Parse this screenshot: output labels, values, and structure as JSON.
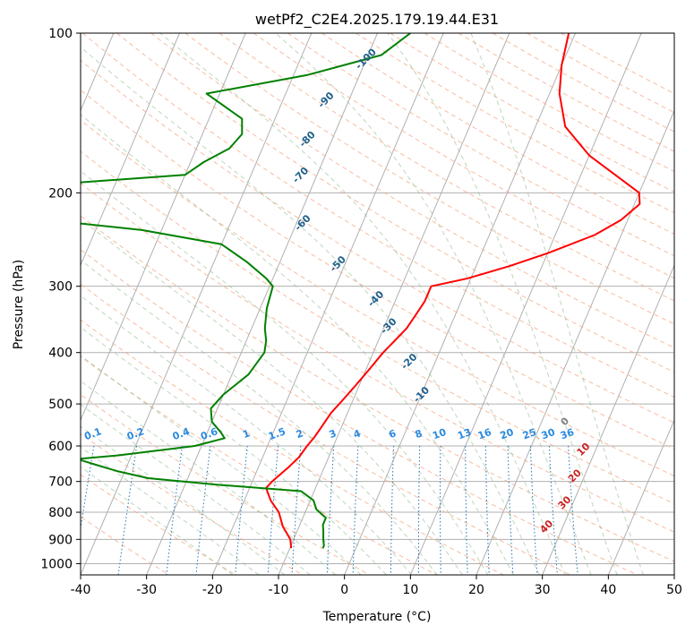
{
  "chart_data": {
    "type": "line",
    "title": "wetPf2_C2E4.2025.179.19.44.E31",
    "xlabel": "Temperature (°C)",
    "ylabel": "Pressure (hPa)",
    "xlim": [
      -40,
      50
    ],
    "ylim": [
      1050,
      100
    ],
    "y_scale": "log",
    "grid": true,
    "x_ticks": [
      -40,
      -30,
      -20,
      -10,
      0,
      10,
      20,
      30,
      40,
      50
    ],
    "y_ticks": [
      100,
      200,
      300,
      400,
      500,
      600,
      700,
      800,
      900,
      1000
    ],
    "series": [
      {
        "id": "temperature",
        "color": "#ff0000",
        "points": [
          [
            -1.0,
            100
          ],
          [
            0.0,
            115
          ],
          [
            1.5,
            130
          ],
          [
            4.5,
            150
          ],
          [
            10.0,
            170
          ],
          [
            20.0,
            200
          ],
          [
            20.8,
            210
          ],
          [
            19.0,
            225
          ],
          [
            16.0,
            240
          ],
          [
            10.0,
            260
          ],
          [
            5.0,
            275
          ],
          [
            -0.5,
            290
          ],
          [
            -5.5,
            300
          ],
          [
            -5.5,
            320
          ],
          [
            -6.0,
            340
          ],
          [
            -6.5,
            360
          ],
          [
            -7.5,
            380
          ],
          [
            -8.5,
            400
          ],
          [
            -9.5,
            430
          ],
          [
            -10.5,
            460
          ],
          [
            -11.5,
            490
          ],
          [
            -12.5,
            520
          ],
          [
            -13.0,
            550
          ],
          [
            -13.5,
            580
          ],
          [
            -14.0,
            600
          ],
          [
            -14.5,
            630
          ],
          [
            -15.5,
            660
          ],
          [
            -17.0,
            700
          ],
          [
            -17.5,
            720
          ],
          [
            -16.0,
            760
          ],
          [
            -14.0,
            800
          ],
          [
            -12.5,
            850
          ],
          [
            -10.5,
            900
          ],
          [
            -10.0,
            925
          ],
          [
            -9.8,
            935
          ]
        ]
      },
      {
        "id": "dewpoint",
        "color": "#008000",
        "points": [
          [
            -25.0,
            100
          ],
          [
            -28.0,
            110
          ],
          [
            -38.0,
            120
          ],
          [
            -52.0,
            130
          ],
          [
            -45.0,
            145
          ],
          [
            -44.0,
            155
          ],
          [
            -45.0,
            165
          ],
          [
            -48.0,
            175
          ],
          [
            -50.0,
            185
          ],
          [
            -70.0,
            193
          ],
          [
            -74.0,
            200
          ],
          [
            -78.0,
            215
          ],
          [
            -65.0,
            227
          ],
          [
            -53.0,
            235
          ],
          [
            -40.0,
            250
          ],
          [
            -35.0,
            270
          ],
          [
            -31.0,
            290
          ],
          [
            -29.5,
            300
          ],
          [
            -29.0,
            330
          ],
          [
            -28.0,
            360
          ],
          [
            -27.0,
            380
          ],
          [
            -26.5,
            400
          ],
          [
            -27.5,
            440
          ],
          [
            -30.0,
            480
          ],
          [
            -31.0,
            510
          ],
          [
            -30.0,
            540
          ],
          [
            -28.0,
            565
          ],
          [
            -27.0,
            580
          ],
          [
            -31.0,
            600
          ],
          [
            -42.0,
            625
          ],
          [
            -48.0,
            635
          ],
          [
            -45.0,
            650
          ],
          [
            -41.0,
            670
          ],
          [
            -36.0,
            690
          ],
          [
            -25.0,
            710
          ],
          [
            -12.0,
            730
          ],
          [
            -9.5,
            760
          ],
          [
            -8.5,
            790
          ],
          [
            -6.5,
            820
          ],
          [
            -6.5,
            845
          ],
          [
            -6.0,
            870
          ],
          [
            -5.5,
            900
          ],
          [
            -5.0,
            925
          ],
          [
            -5.0,
            935
          ]
        ]
      }
    ],
    "dry_adiabat_labels": [
      {
        "text": "-100",
        "x": -29.6,
        "p": 113
      },
      {
        "text": "-90",
        "x": -33.0,
        "p": 135
      },
      {
        "text": "-80",
        "x": -33.3,
        "p": 160
      },
      {
        "text": "-70",
        "x": -32.0,
        "p": 187
      },
      {
        "text": "-60",
        "x": -28.6,
        "p": 230
      },
      {
        "text": "-50",
        "x": -20.6,
        "p": 275
      },
      {
        "text": "-40",
        "x": -12.6,
        "p": 320
      },
      {
        "text": "-30",
        "x": -8.9,
        "p": 360
      },
      {
        "text": "-20",
        "x": -3.5,
        "p": 420
      },
      {
        "text": "-10",
        "x": 0.5,
        "p": 485
      }
    ],
    "moist_adiabat_labels": [
      {
        "text": "0",
        "x": 24.0,
        "p": 545
      },
      {
        "text": "10",
        "x": 28.6,
        "p": 615
      },
      {
        "text": "20",
        "x": 29.0,
        "p": 690
      },
      {
        "text": "30",
        "x": 29.2,
        "p": 775
      },
      {
        "text": "40",
        "x": 28.0,
        "p": 860
      }
    ],
    "mixing_ratio_labels": [
      "0.1",
      "0.2",
      "0.4",
      "0.6",
      "1",
      "1.5",
      "2",
      "3",
      "4",
      "6",
      "8",
      "10",
      "13",
      "16",
      "20",
      "25",
      "30",
      "36"
    ],
    "colors": {
      "temperature": "#ff0000",
      "dewpoint": "#008000",
      "dry_adiabat": "#f4a582",
      "moist_adiabat": "#8fbc8f",
      "mixing_ratio": "#1f77b4",
      "mixing_ratio_label": "#2a8ae0",
      "dry_label": "#1f5f8b",
      "moist_label": "#cc2222",
      "grid": "#b0b0b0"
    }
  }
}
